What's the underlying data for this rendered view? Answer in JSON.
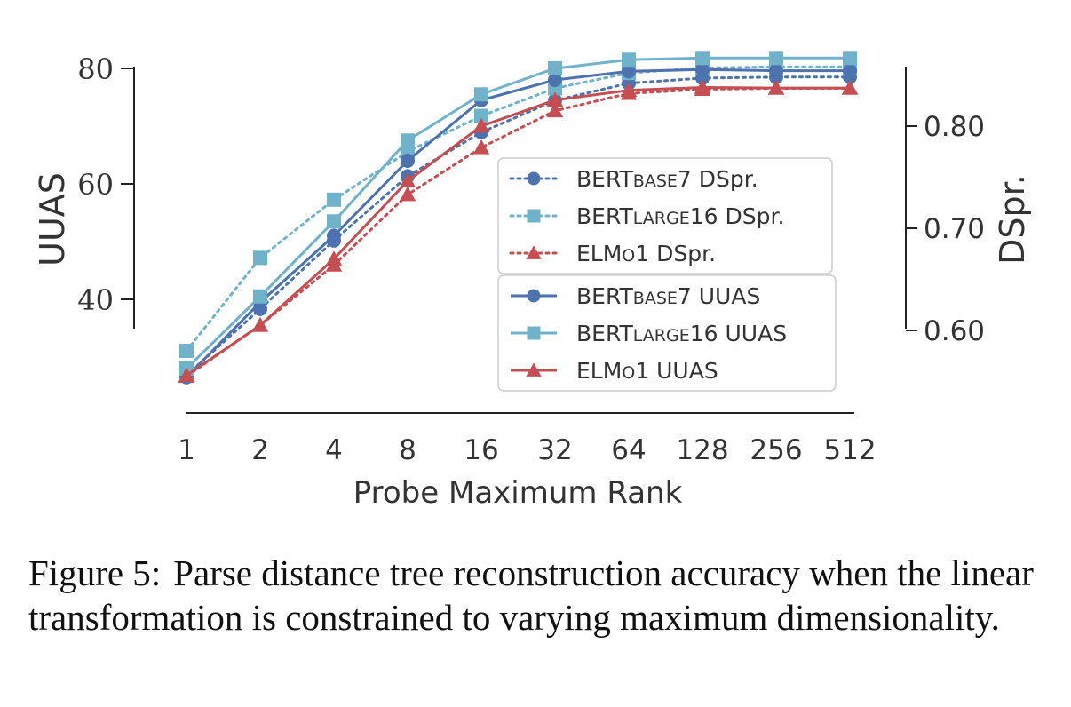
{
  "chart_data": {
    "type": "line",
    "xlabel": "Probe Maximum Rank",
    "ylabel": "UUAS",
    "y2label": "DSpr.",
    "categories": [
      "1",
      "2",
      "4",
      "8",
      "16",
      "32",
      "64",
      "128",
      "256",
      "512"
    ],
    "yticks": [
      "40",
      "60",
      "80"
    ],
    "y2ticks": [
      "0.60",
      "0.70",
      "0.80"
    ],
    "ylim": [
      35,
      80
    ],
    "y2lim": [
      0.6,
      0.86
    ],
    "grid": false,
    "legend_placement": "center-right",
    "series": [
      {
        "name": "BERTBASE7 DSpr.",
        "legend_main": "BERT",
        "legend_small": "BASE",
        "legend_suffix": "7 DSpr.",
        "axis": "y2",
        "style": "dotted",
        "marker": "circle",
        "color": "#4c72b0",
        "values": [
          0.556,
          0.621,
          0.688,
          0.751,
          0.794,
          0.825,
          0.842,
          0.847,
          0.848,
          0.848
        ]
      },
      {
        "name": "BERTLARGE16 DSpr.",
        "legend_main": "BERT",
        "legend_small": "LARGE",
        "legend_suffix": "16 DSpr.",
        "axis": "y2",
        "style": "dotted",
        "marker": "square",
        "color": "#71b2cb",
        "values": [
          0.58,
          0.671,
          0.728,
          0.775,
          0.81,
          0.837,
          0.852,
          0.857,
          0.858,
          0.858
        ]
      },
      {
        "name": "ELMo1 DSpr.",
        "legend_main": "ELM",
        "legend_small": "O",
        "legend_suffix": "1 DSpr.",
        "axis": "y2",
        "style": "dotted",
        "marker": "triangle",
        "color": "#c44e52",
        "values": [
          0.555,
          0.605,
          0.664,
          0.733,
          0.779,
          0.815,
          0.832,
          0.836,
          0.837,
          0.837
        ]
      },
      {
        "name": "BERTBASE7 UUAS",
        "legend_main": "BERT",
        "legend_small": "BASE",
        "legend_suffix": "7 UUAS",
        "axis": "y",
        "style": "solid",
        "marker": "circle",
        "color": "#4c72b0",
        "values": [
          26.5,
          39.5,
          51.0,
          64.0,
          74.5,
          78.0,
          79.5,
          79.8,
          79.6,
          79.6
        ]
      },
      {
        "name": "BERTLARGE16 UUAS",
        "legend_main": "BERT",
        "legend_small": "LARGE",
        "legend_suffix": "16 UUAS",
        "axis": "y",
        "style": "solid",
        "marker": "square",
        "color": "#71b2cb",
        "values": [
          28.0,
          40.5,
          53.5,
          67.5,
          75.5,
          80.0,
          81.5,
          81.8,
          81.8,
          81.8
        ]
      },
      {
        "name": "ELMo1 UUAS",
        "legend_main": "ELM",
        "legend_small": "O",
        "legend_suffix": "1 UUAS",
        "axis": "y",
        "style": "solid",
        "marker": "triangle",
        "color": "#c44e52",
        "values": [
          26.8,
          35.5,
          47.0,
          60.5,
          70.0,
          74.5,
          76.2,
          76.7,
          76.6,
          76.6
        ]
      }
    ]
  },
  "caption": {
    "label": "Figure 5:",
    "text": "Parse distance tree reconstruction accuracy when the linear transformation is constrained to varying maximum dimensionality."
  }
}
